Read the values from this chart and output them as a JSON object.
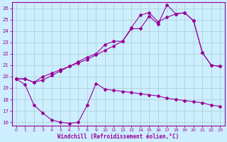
{
  "xlabel": "Windchill (Refroidissement éolien,°C)",
  "bg_color": "#cceeff",
  "line_color": "#990099",
  "grid_color": "#aacccc",
  "xlim": [
    -0.5,
    23.5
  ],
  "ylim": [
    15.7,
    26.5
  ],
  "yticks": [
    16,
    17,
    18,
    19,
    20,
    21,
    22,
    23,
    24,
    25,
    26
  ],
  "xticks": [
    0,
    1,
    2,
    3,
    4,
    5,
    6,
    7,
    8,
    9,
    10,
    11,
    12,
    13,
    14,
    15,
    16,
    17,
    18,
    19,
    20,
    21,
    22,
    23
  ],
  "line1": {
    "x": [
      0,
      1,
      2,
      3,
      4,
      5,
      6,
      7,
      8,
      9,
      10,
      11,
      12,
      13,
      14,
      15,
      16,
      17,
      18,
      19,
      20,
      21,
      22,
      23
    ],
    "y": [
      19.8,
      19.8,
      19.5,
      20.0,
      20.3,
      20.6,
      20.9,
      21.2,
      21.5,
      21.9,
      22.3,
      22.7,
      23.1,
      24.2,
      24.2,
      25.3,
      24.6,
      26.3,
      25.5,
      25.6,
      24.9,
      22.1,
      21.0,
      20.9
    ]
  },
  "line2": {
    "x": [
      0,
      1,
      2,
      3,
      4,
      5,
      6,
      7,
      8,
      9,
      10,
      11,
      12,
      13,
      14,
      15,
      16,
      17,
      18,
      19,
      20,
      21,
      22,
      23
    ],
    "y": [
      19.8,
      19.8,
      19.5,
      19.7,
      20.1,
      20.5,
      20.9,
      21.3,
      21.7,
      22.0,
      22.8,
      23.1,
      23.1,
      24.3,
      25.4,
      25.6,
      24.8,
      25.2,
      25.5,
      25.6,
      24.9,
      22.1,
      21.0,
      20.9
    ]
  },
  "line3": {
    "x": [
      0,
      1,
      2,
      3,
      4,
      5,
      6,
      7,
      8,
      9,
      10,
      11,
      12,
      13,
      14,
      15,
      16,
      17,
      18,
      19,
      20,
      21,
      22,
      23
    ],
    "y": [
      19.8,
      19.3,
      17.5,
      16.8,
      16.2,
      16.0,
      15.9,
      16.0,
      17.5,
      19.4,
      18.9,
      18.8,
      18.7,
      18.6,
      18.5,
      18.4,
      18.3,
      18.1,
      18.0,
      17.9,
      17.8,
      17.7,
      17.5,
      17.4
    ]
  }
}
